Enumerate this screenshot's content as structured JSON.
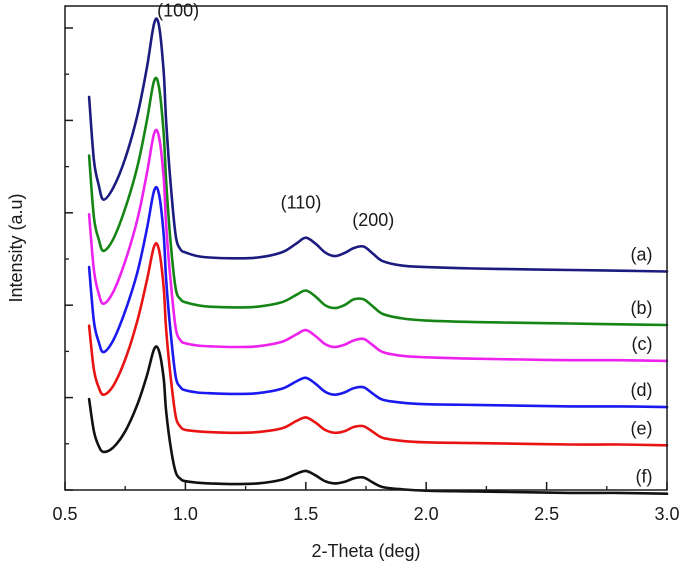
{
  "chart_data": {
    "type": "line",
    "title": "",
    "xlabel": "2-Theta (deg)",
    "ylabel": "Intensity (a.u)",
    "xlim": [
      0.5,
      3.0
    ],
    "x_ticks": [
      "0.5",
      "1.0",
      "1.5",
      "2.0",
      "2.5",
      "3.0"
    ],
    "x_tick_values": [
      0.5,
      1.0,
      1.5,
      2.0,
      2.5,
      3.0
    ],
    "ylim": [
      0,
      33
    ],
    "y_ticks_shown": false,
    "peak_annotations": [
      {
        "text": "(100)",
        "x": 0.97,
        "y": 32.3
      },
      {
        "text": "(110)",
        "x": 1.48,
        "y": 19.2
      },
      {
        "text": "(200)",
        "x": 1.78,
        "y": 18.0
      }
    ],
    "series": [
      {
        "name": "(a)",
        "label": "(a)",
        "color": "#1c1c80",
        "x": [
          0.6,
          0.62,
          0.64,
          0.66,
          0.7,
          0.75,
          0.8,
          0.84,
          0.87,
          0.89,
          0.91,
          0.92,
          0.94,
          0.96,
          0.98,
          1.0,
          1.05,
          1.1,
          1.2,
          1.3,
          1.4,
          1.46,
          1.5,
          1.54,
          1.58,
          1.62,
          1.66,
          1.7,
          1.74,
          1.78,
          1.82,
          1.9,
          2.0,
          2.2,
          2.4,
          2.6,
          2.8,
          3.0
        ],
        "y": [
          26.8,
          22.5,
          20.8,
          19.8,
          20.6,
          22.6,
          25.5,
          28.8,
          31.8,
          31.7,
          28.5,
          25.2,
          20.6,
          17.3,
          16.4,
          16.2,
          15.95,
          15.85,
          15.8,
          15.85,
          16.2,
          16.8,
          17.2,
          16.8,
          16.2,
          15.95,
          16.15,
          16.5,
          16.6,
          16.1,
          15.6,
          15.3,
          15.2,
          15.1,
          15.05,
          15.0,
          14.95,
          14.9
        ]
      },
      {
        "name": "(b)",
        "label": "(b)",
        "color": "#158515",
        "x": [
          0.6,
          0.62,
          0.64,
          0.66,
          0.7,
          0.75,
          0.8,
          0.84,
          0.87,
          0.89,
          0.91,
          0.92,
          0.94,
          0.96,
          0.98,
          1.0,
          1.05,
          1.1,
          1.2,
          1.3,
          1.4,
          1.46,
          1.5,
          1.54,
          1.58,
          1.62,
          1.66,
          1.7,
          1.74,
          1.78,
          1.82,
          1.9,
          2.0,
          2.2,
          2.4,
          2.6,
          2.8,
          3.0
        ],
        "y": [
          22.8,
          18.6,
          17.1,
          16.3,
          17.1,
          19.2,
          22.0,
          25.2,
          27.9,
          27.5,
          24.3,
          21.1,
          16.6,
          13.7,
          13.0,
          12.8,
          12.6,
          12.5,
          12.45,
          12.5,
          12.8,
          13.3,
          13.6,
          13.2,
          12.6,
          12.4,
          12.6,
          13.0,
          13.0,
          12.5,
          12.0,
          11.7,
          11.55,
          11.45,
          11.4,
          11.35,
          11.3,
          11.25
        ]
      },
      {
        "name": "(c)",
        "label": "(c)",
        "color": "#ee22ee",
        "x": [
          0.6,
          0.62,
          0.64,
          0.66,
          0.7,
          0.75,
          0.8,
          0.84,
          0.87,
          0.89,
          0.91,
          0.92,
          0.94,
          0.96,
          0.98,
          1.0,
          1.05,
          1.1,
          1.2,
          1.3,
          1.4,
          1.46,
          1.5,
          1.54,
          1.58,
          1.62,
          1.66,
          1.7,
          1.74,
          1.78,
          1.82,
          1.9,
          2.0,
          2.2,
          2.4,
          2.6,
          2.8,
          3.0
        ],
        "y": [
          18.8,
          15.0,
          13.4,
          12.7,
          13.5,
          15.6,
          18.4,
          21.6,
          24.3,
          24.1,
          21.3,
          18.1,
          14.0,
          11.0,
          10.2,
          10.0,
          9.85,
          9.8,
          9.75,
          9.8,
          10.1,
          10.6,
          10.9,
          10.5,
          9.95,
          9.75,
          9.9,
          10.2,
          10.3,
          9.85,
          9.4,
          9.15,
          9.05,
          8.95,
          8.9,
          8.85,
          8.85,
          8.8
        ]
      },
      {
        "name": "(d)",
        "label": "(d)",
        "color": "#1a1aee",
        "x": [
          0.6,
          0.62,
          0.64,
          0.66,
          0.7,
          0.75,
          0.8,
          0.84,
          0.87,
          0.89,
          0.91,
          0.92,
          0.94,
          0.96,
          0.98,
          1.0,
          1.05,
          1.1,
          1.2,
          1.3,
          1.4,
          1.46,
          1.5,
          1.54,
          1.58,
          1.62,
          1.66,
          1.7,
          1.74,
          1.78,
          1.82,
          1.9,
          2.0,
          2.2,
          2.4,
          2.6,
          2.8,
          3.0
        ],
        "y": [
          15.2,
          11.5,
          10.1,
          9.4,
          10.2,
          12.2,
          14.8,
          17.8,
          20.4,
          20.2,
          17.4,
          14.4,
          10.5,
          7.7,
          7.0,
          6.8,
          6.65,
          6.6,
          6.55,
          6.6,
          6.9,
          7.4,
          7.65,
          7.25,
          6.7,
          6.5,
          6.65,
          6.95,
          7.0,
          6.55,
          6.15,
          5.95,
          5.85,
          5.8,
          5.75,
          5.7,
          5.7,
          5.65
        ]
      },
      {
        "name": "(e)",
        "label": "(e)",
        "color": "#e81414",
        "x": [
          0.6,
          0.62,
          0.64,
          0.66,
          0.7,
          0.75,
          0.8,
          0.84,
          0.87,
          0.89,
          0.91,
          0.92,
          0.94,
          0.96,
          0.98,
          1.0,
          1.05,
          1.1,
          1.2,
          1.3,
          1.4,
          1.46,
          1.5,
          1.54,
          1.58,
          1.62,
          1.66,
          1.7,
          1.74,
          1.78,
          1.82,
          1.9,
          2.0,
          2.2,
          2.4,
          2.6,
          2.8,
          3.0
        ],
        "y": [
          11.2,
          8.2,
          7.0,
          6.5,
          7.1,
          8.9,
          11.5,
          14.3,
          16.6,
          16.4,
          13.8,
          11.0,
          7.5,
          5.0,
          4.3,
          4.1,
          4.0,
          3.95,
          3.9,
          3.95,
          4.2,
          4.7,
          4.95,
          4.6,
          4.1,
          3.9,
          4.0,
          4.3,
          4.35,
          3.95,
          3.55,
          3.35,
          3.25,
          3.2,
          3.15,
          3.1,
          3.1,
          3.05
        ]
      },
      {
        "name": "(f)",
        "label": "(f)",
        "color": "#111111",
        "x": [
          0.6,
          0.62,
          0.64,
          0.66,
          0.7,
          0.75,
          0.8,
          0.84,
          0.87,
          0.89,
          0.91,
          0.92,
          0.94,
          0.96,
          0.98,
          1.0,
          1.05,
          1.1,
          1.2,
          1.3,
          1.4,
          1.46,
          1.5,
          1.54,
          1.58,
          1.62,
          1.66,
          1.7,
          1.74,
          1.78,
          1.82,
          1.9,
          2.0,
          2.2,
          2.4,
          2.6,
          2.8,
          3.0
        ],
        "y": [
          6.2,
          4.0,
          3.0,
          2.6,
          2.9,
          4.0,
          5.8,
          7.8,
          9.6,
          9.5,
          7.6,
          5.4,
          2.8,
          1.2,
          0.75,
          0.6,
          0.5,
          0.45,
          0.4,
          0.45,
          0.7,
          1.1,
          1.3,
          1.0,
          0.6,
          0.45,
          0.55,
          0.8,
          0.85,
          0.5,
          0.2,
          0.05,
          -0.05,
          -0.1,
          -0.15,
          -0.2,
          -0.2,
          -0.25
        ]
      }
    ]
  }
}
